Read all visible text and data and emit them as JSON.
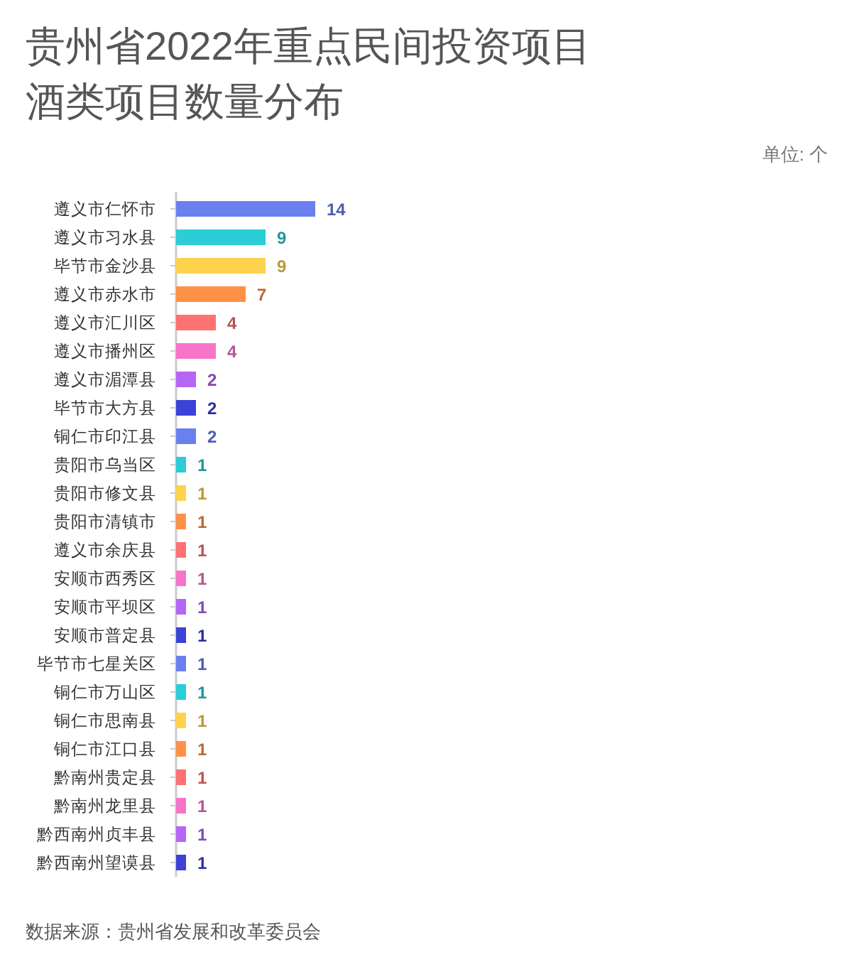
{
  "chart_data": {
    "type": "bar",
    "orientation": "horizontal",
    "title": "贵州省2022年重点民间投资项目酒类项目数量分布",
    "categories": [
      "遵义市仁怀市",
      "遵义市习水县",
      "毕节市金沙县",
      "遵义市赤水市",
      "遵义市汇川区",
      "遵义市播州区",
      "遵义市湄潭县",
      "毕节市大方县",
      "铜仁市印江县",
      "贵阳市乌当区",
      "贵阳市修文县",
      "贵阳市清镇市",
      "遵义市余庆县",
      "安顺市西秀区",
      "安顺市平坝区",
      "安顺市普定县",
      "毕节市七星关区",
      "铜仁市万山区",
      "铜仁市思南县",
      "铜仁市江口县",
      "黔南州贵定县",
      "黔南州龙里县",
      "黔西南州贞丰县",
      "黔西南州望谟县"
    ],
    "values": [
      14,
      9,
      9,
      7,
      4,
      4,
      2,
      2,
      2,
      1,
      1,
      1,
      1,
      1,
      1,
      1,
      1,
      1,
      1,
      1,
      1,
      1,
      1,
      1
    ],
    "colors": [
      "#6a80ef",
      "#2bcdd7",
      "#ffd24d",
      "#ff9147",
      "#ff7272",
      "#f774c9",
      "#b466f5",
      "#3b42d6",
      "#6a80ef",
      "#2bcdd7",
      "#ffd24d",
      "#ff9147",
      "#ff7272",
      "#f774c9",
      "#b466f5",
      "#3b42d6",
      "#6a80ef",
      "#2bcdd7",
      "#ffd24d",
      "#ff9147",
      "#ff7272",
      "#f774c9",
      "#b466f5",
      "#3b42d6"
    ],
    "data_labels": true,
    "tick_labels": "y",
    "annotations": [
      "单位: 个",
      "数据来源：贵州省发展和改革委员会"
    ]
  }
}
